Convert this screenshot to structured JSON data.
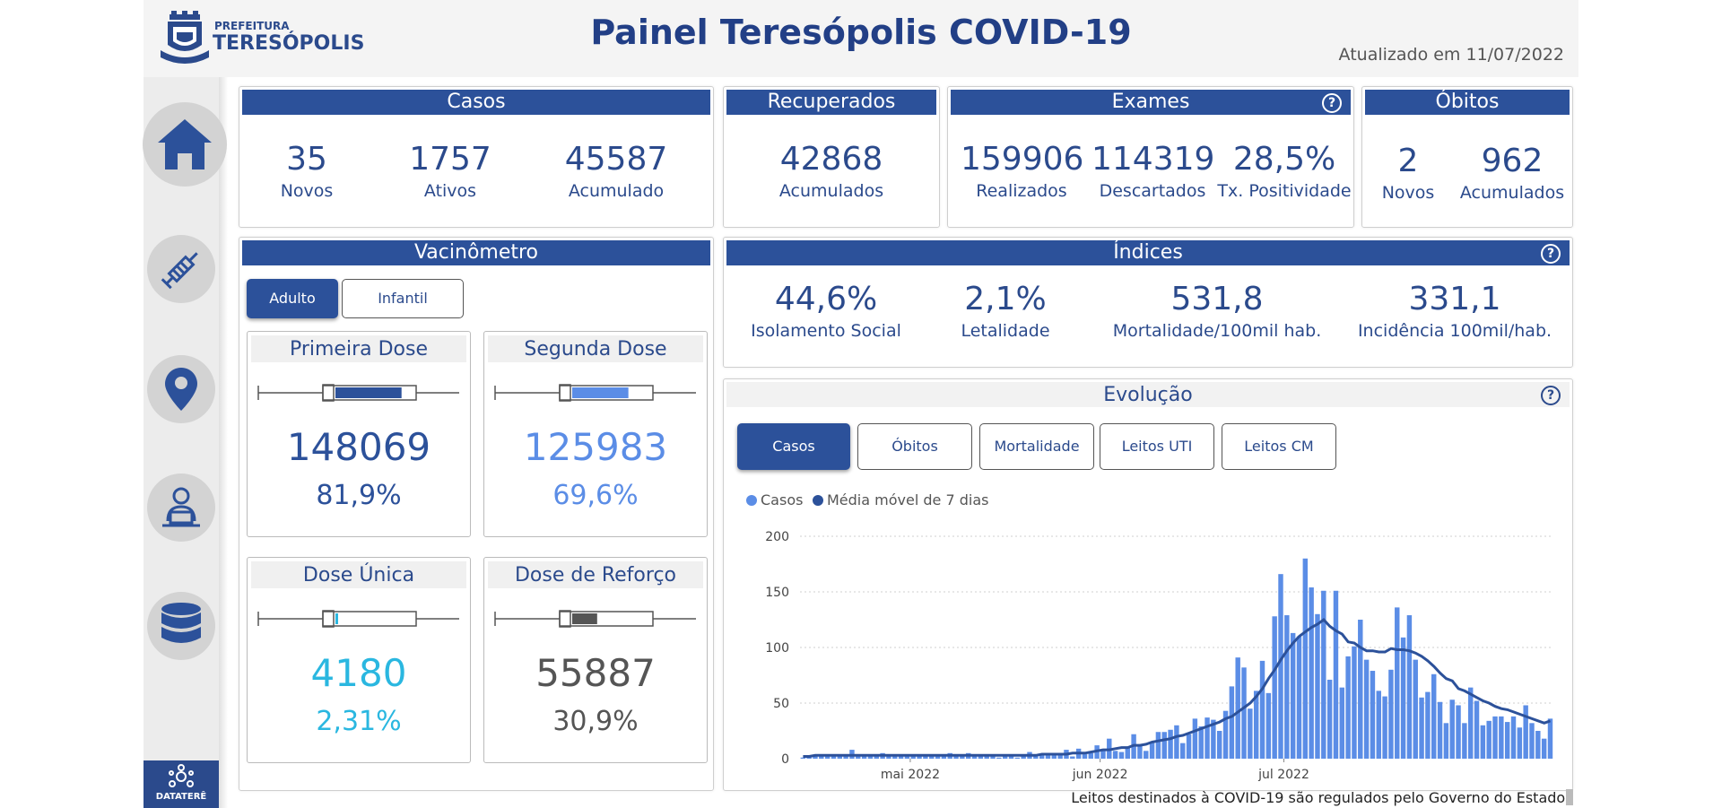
{
  "header": {
    "title": "Painel Teresópolis COVID-19",
    "updated": "Atualizado em 11/07/2022",
    "logo_small": "PREFEITURA",
    "logo_big": "TERESÓPOLIS"
  },
  "nav": [
    {
      "icon": "home-icon"
    },
    {
      "icon": "syringe-icon"
    },
    {
      "icon": "location-pin-icon"
    },
    {
      "icon": "user-laptop-icon"
    },
    {
      "icon": "database-icon"
    }
  ],
  "brand": "DATATERÊ",
  "casos": {
    "title": "Casos",
    "novos": {
      "value": "35",
      "label": "Novos"
    },
    "ativos": {
      "value": "1757",
      "label": "Ativos"
    },
    "acumulado": {
      "value": "45587",
      "label": "Acumulado"
    }
  },
  "recuperados": {
    "title": "Recuperados",
    "acumulados": {
      "value": "42868",
      "label": "Acumulados"
    }
  },
  "exames": {
    "title": "Exames",
    "help": "?",
    "realizados": {
      "value": "159906",
      "label": "Realizados"
    },
    "descartados": {
      "value": "114319",
      "label": "Descartados"
    },
    "positividade": {
      "value": "28,5%",
      "label": "Tx. Positividade"
    }
  },
  "obitos": {
    "title": "Óbitos",
    "novos": {
      "value": "2",
      "label": "Novos"
    },
    "acumulados": {
      "value": "962",
      "label": "Acumulados"
    }
  },
  "vacinometro": {
    "title": "Vacinômetro",
    "tabs": [
      "Adulto",
      "Infantil"
    ],
    "primeira": {
      "title": "Primeira Dose",
      "value": "148069",
      "pct": "81,9%",
      "color": "#2c519a",
      "fill": 0.819
    },
    "segunda": {
      "title": "Segunda Dose",
      "value": "125983",
      "pct": "69,6%",
      "color": "#5b8de6",
      "fill": 0.696
    },
    "unica": {
      "title": "Dose Única",
      "value": "4180",
      "pct": "2,31%",
      "color": "#2ab7e0",
      "fill": 0.0231
    },
    "reforco": {
      "title": "Dose de Reforço",
      "value": "55887",
      "pct": "30,9%",
      "color": "#555555",
      "fill": 0.309
    }
  },
  "indices": {
    "title": "Índices",
    "help": "?",
    "isolamento": {
      "value": "44,6%",
      "label": "Isolamento Social"
    },
    "letalidade": {
      "value": "2,1%",
      "label": "Letalidade"
    },
    "mortalidade": {
      "value": "531,8",
      "label": "Mortalidade/100mil hab."
    },
    "incidencia": {
      "value": "331,1",
      "label": "Incidência 100mil/hab."
    }
  },
  "evolucao": {
    "title": "Evolução",
    "help": "?",
    "tabs": [
      "Casos",
      "Óbitos",
      "Mortalidade",
      "Leitos UTI",
      "Leitos CM"
    ]
  },
  "chart_data": {
    "type": "bar",
    "legend": [
      "Casos",
      "Média móvel de 7 dias"
    ],
    "colors": {
      "bars": "#5b8de6",
      "line": "#2c519a"
    },
    "x_ticks": [
      "mai 2022",
      "jun 2022",
      "jul 2022"
    ],
    "y_ticks": [
      0,
      50,
      100,
      150,
      200
    ],
    "ylim": [
      0,
      200
    ],
    "x_start": "2022-04-13",
    "values": [
      1,
      2,
      3,
      3,
      4,
      4,
      2,
      3,
      8,
      2,
      3,
      3,
      4,
      5,
      3,
      2,
      2,
      3,
      3,
      4,
      2,
      2,
      3,
      2,
      5,
      2,
      3,
      5,
      3,
      2,
      4,
      2,
      1,
      3,
      2,
      1,
      4,
      6,
      3,
      4,
      4,
      5,
      3,
      8,
      2,
      9,
      4,
      5,
      12,
      8,
      18,
      7,
      6,
      10,
      22,
      12,
      7,
      15,
      24,
      24,
      26,
      30,
      14,
      22,
      36,
      29,
      37,
      35,
      25,
      43,
      65,
      91,
      82,
      45,
      61,
      88,
      59,
      128,
      166,
      129,
      113,
      110,
      180,
      154,
      130,
      151,
      71,
      151,
      64,
      92,
      101,
      125,
      89,
      79,
      61,
      56,
      80,
      136,
      109,
      129,
      89,
      55,
      60,
      76,
      51,
      32,
      53,
      48,
      32,
      64,
      52,
      30,
      34,
      38,
      38,
      33,
      38,
      28,
      48,
      32,
      25,
      18,
      36
    ],
    "moving_avg": [
      2,
      2,
      3,
      3,
      3,
      3,
      3,
      3,
      3,
      3,
      3,
      3,
      3,
      3,
      3,
      3,
      3,
      3,
      3,
      3,
      3,
      3,
      3,
      3,
      3,
      3,
      3,
      3,
      3,
      3,
      3,
      3,
      3,
      3,
      3,
      3,
      3,
      3,
      3,
      4,
      4,
      4,
      4,
      4,
      5,
      5,
      5,
      6,
      7,
      8,
      8,
      9,
      10,
      10,
      12,
      12,
      13,
      15,
      16,
      17,
      18,
      20,
      21,
      23,
      25,
      27,
      29,
      31,
      33,
      36,
      38,
      42,
      46,
      50,
      56,
      63,
      72,
      80,
      89,
      97,
      104,
      110,
      114,
      118,
      121,
      125,
      119,
      115,
      112,
      105,
      104,
      100,
      97,
      97,
      96,
      96,
      99,
      98,
      98,
      97,
      95,
      92,
      88,
      83,
      77,
      72,
      70,
      63,
      61,
      58,
      55,
      52,
      50,
      47,
      45,
      44,
      42,
      40,
      38,
      36,
      34,
      32,
      34
    ]
  },
  "footer": "Leitos destinados à COVID-19 são regulados pelo Governo do Estado."
}
